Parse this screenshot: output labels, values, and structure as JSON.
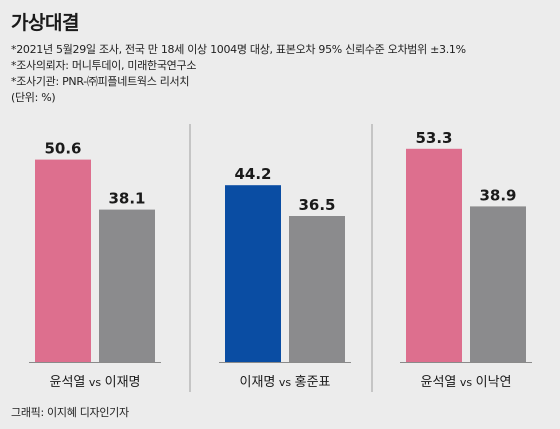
{
  "header": {
    "title": "가상대결",
    "notes": [
      "*2021년 5월29일 조사, 전국 만 18세 이상 1004명 대상, 표본오차 95% 신뢰수준 오차범위 ±3.1%",
      "*조사의뢰자: 머니투데이, 미래한국연구소",
      "*조사기관: PNR-㈜피플네트웍스 리서치",
      "(단위: %)"
    ]
  },
  "credit": "그래픽: 이지혜 디자인기자",
  "colors": {
    "pink": "#dd6f8e",
    "gray": "#8b8b8d",
    "blue": "#0a4da3",
    "divider": "#b8b8b8",
    "baseline": "#8a8a8a"
  },
  "chart_data": {
    "type": "bar",
    "unit": "%",
    "groups": [
      {
        "label_left": "윤석열",
        "vs": "vs",
        "label_right": "이재명",
        "bars": [
          {
            "name": "윤석열",
            "value": 50.6,
            "color": "pink"
          },
          {
            "name": "이재명",
            "value": 38.1,
            "color": "gray"
          }
        ]
      },
      {
        "label_left": "이재명",
        "vs": "vs",
        "label_right": "홍준표",
        "bars": [
          {
            "name": "이재명",
            "value": 44.2,
            "color": "blue"
          },
          {
            "name": "홍준표",
            "value": 36.5,
            "color": "gray"
          }
        ]
      },
      {
        "label_left": "윤석열",
        "vs": "vs",
        "label_right": "이낙연",
        "bars": [
          {
            "name": "윤석열",
            "value": 53.3,
            "color": "pink"
          },
          {
            "name": "이낙연",
            "value": 38.9,
            "color": "gray"
          }
        ]
      }
    ]
  }
}
